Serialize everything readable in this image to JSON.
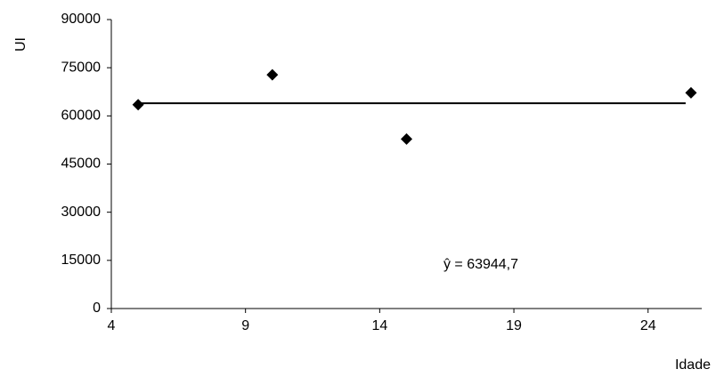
{
  "chart_data": {
    "type": "scatter",
    "xlabel": "Idade",
    "ylabel": "UI",
    "xlim": [
      4,
      26
    ],
    "ylim": [
      0,
      90000
    ],
    "x_ticks": [
      4,
      9,
      14,
      19,
      24
    ],
    "y_ticks": [
      0,
      15000,
      30000,
      45000,
      60000,
      75000,
      90000
    ],
    "series": [
      {
        "marker": "diamond",
        "color": "#000000",
        "points": [
          {
            "x": 5,
            "y": 63500
          },
          {
            "x": 10,
            "y": 72800
          },
          {
            "x": 15,
            "y": 52800
          },
          {
            "x": 25.6,
            "y": 67200
          }
        ]
      }
    ],
    "trendline": {
      "x_start": 5,
      "x_end": 25.4,
      "y": 63944.7,
      "color": "#000000"
    },
    "annotation": "ŷ = 63944,7",
    "grid": false
  }
}
